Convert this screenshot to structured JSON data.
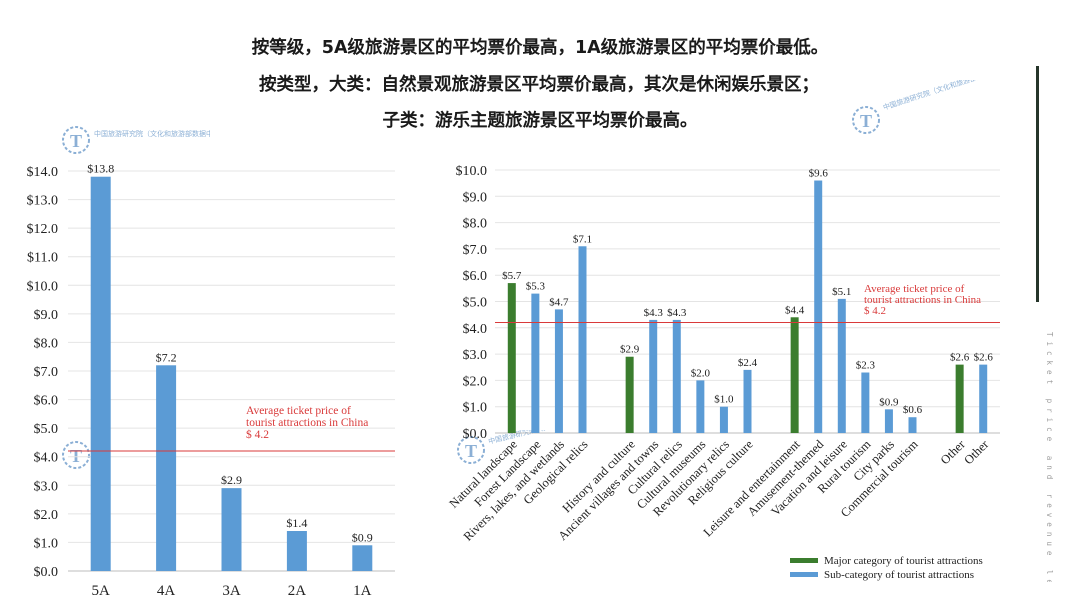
{
  "headlines": [
    "按等级，5A级旅游景区的平均票价最高，1A级旅游景区的平均票价最低。",
    "按类型，大类：自然景观旅游景区平均票价最高，其次是休闲娱乐景区；",
    "子类：游乐主题旅游景区平均票价最高。"
  ],
  "side_caption": "Ticket price and revenue levels",
  "watermark": "中国旅游研究院（文化和旅游部数据中心）",
  "colors": {
    "bar_blue": "#5b9bd5",
    "bar_green": "#3b7d2e",
    "avg_line": "#d93a3a",
    "accent_bar": "#26352a"
  },
  "chart_data": [
    {
      "type": "bar",
      "categories": [
        "5A",
        "4A",
        "3A",
        "2A",
        "1A"
      ],
      "values": [
        13.8,
        7.2,
        2.9,
        1.4,
        0.9
      ],
      "value_labels": [
        "$13.8",
        "$7.2",
        "$2.9",
        "$1.4",
        "$0.9"
      ],
      "ylim": [
        0,
        14
      ],
      "yticks": [
        "$0.0",
        "$1.0",
        "$2.0",
        "$3.0",
        "$4.0",
        "$5.0",
        "$6.0",
        "$7.0",
        "$8.0",
        "$9.0",
        "$10.0",
        "$11.0",
        "$12.0",
        "$13.0",
        "$14.0"
      ],
      "reference_line": {
        "value": 4.2,
        "label_lines": [
          "Average ticket price of",
          "tourist attractions in China",
          "$ 4.2"
        ]
      }
    },
    {
      "type": "bar",
      "categories": [
        "Natural landscape",
        "Forest Landscape",
        "Rivers, lakes, and wetlands",
        "Geological relics",
        "History and culture",
        "Ancient villages and towns",
        "Cultural relics",
        "Cultural museums",
        "Revolutionary relics",
        "Religious culture",
        "Leisure and entertainment",
        "Amusement-themed",
        "Vacation and leisure",
        "Rural tourism",
        "City parks",
        "Commercial tourism",
        "Other",
        "Other"
      ],
      "groups": [
        [
          0,
          1,
          2,
          3
        ],
        [
          4,
          5,
          6,
          7,
          8,
          9
        ],
        [
          10,
          11,
          12,
          13,
          14,
          15
        ],
        [
          16,
          17
        ]
      ],
      "values": [
        5.7,
        5.3,
        4.7,
        7.1,
        2.9,
        4.3,
        4.3,
        2.0,
        1.0,
        2.4,
        4.4,
        9.6,
        5.1,
        2.3,
        0.9,
        0.6,
        2.6,
        2.6
      ],
      "value_labels": [
        "$5.7",
        "$5.3",
        "$4.7",
        "$7.1",
        "$2.9",
        "$4.3",
        "$4.3",
        "$2.0",
        "$1.0",
        "$2.4",
        "$4.4",
        "$9.6",
        "$5.1",
        "$2.3",
        "$0.9",
        "$0.6",
        "$2.6",
        "$2.6"
      ],
      "kind": [
        "major",
        "sub",
        "sub",
        "sub",
        "major",
        "sub",
        "sub",
        "sub",
        "sub",
        "sub",
        "major",
        "sub",
        "sub",
        "sub",
        "sub",
        "sub",
        "major",
        "sub"
      ],
      "ylim": [
        0,
        10
      ],
      "yticks": [
        "$0.0",
        "$1.0",
        "$2.0",
        "$3.0",
        "$4.0",
        "$5.0",
        "$6.0",
        "$7.0",
        "$8.0",
        "$9.0",
        "$10.0"
      ],
      "reference_line": {
        "value": 4.2,
        "label_lines": [
          "Average ticket price of",
          "tourist attractions in China",
          "$ 4.2"
        ]
      },
      "legend": {
        "position": "bottom-right",
        "major": "Major category of tourist attractions",
        "sub": "Sub-category of tourist attractions"
      }
    }
  ]
}
